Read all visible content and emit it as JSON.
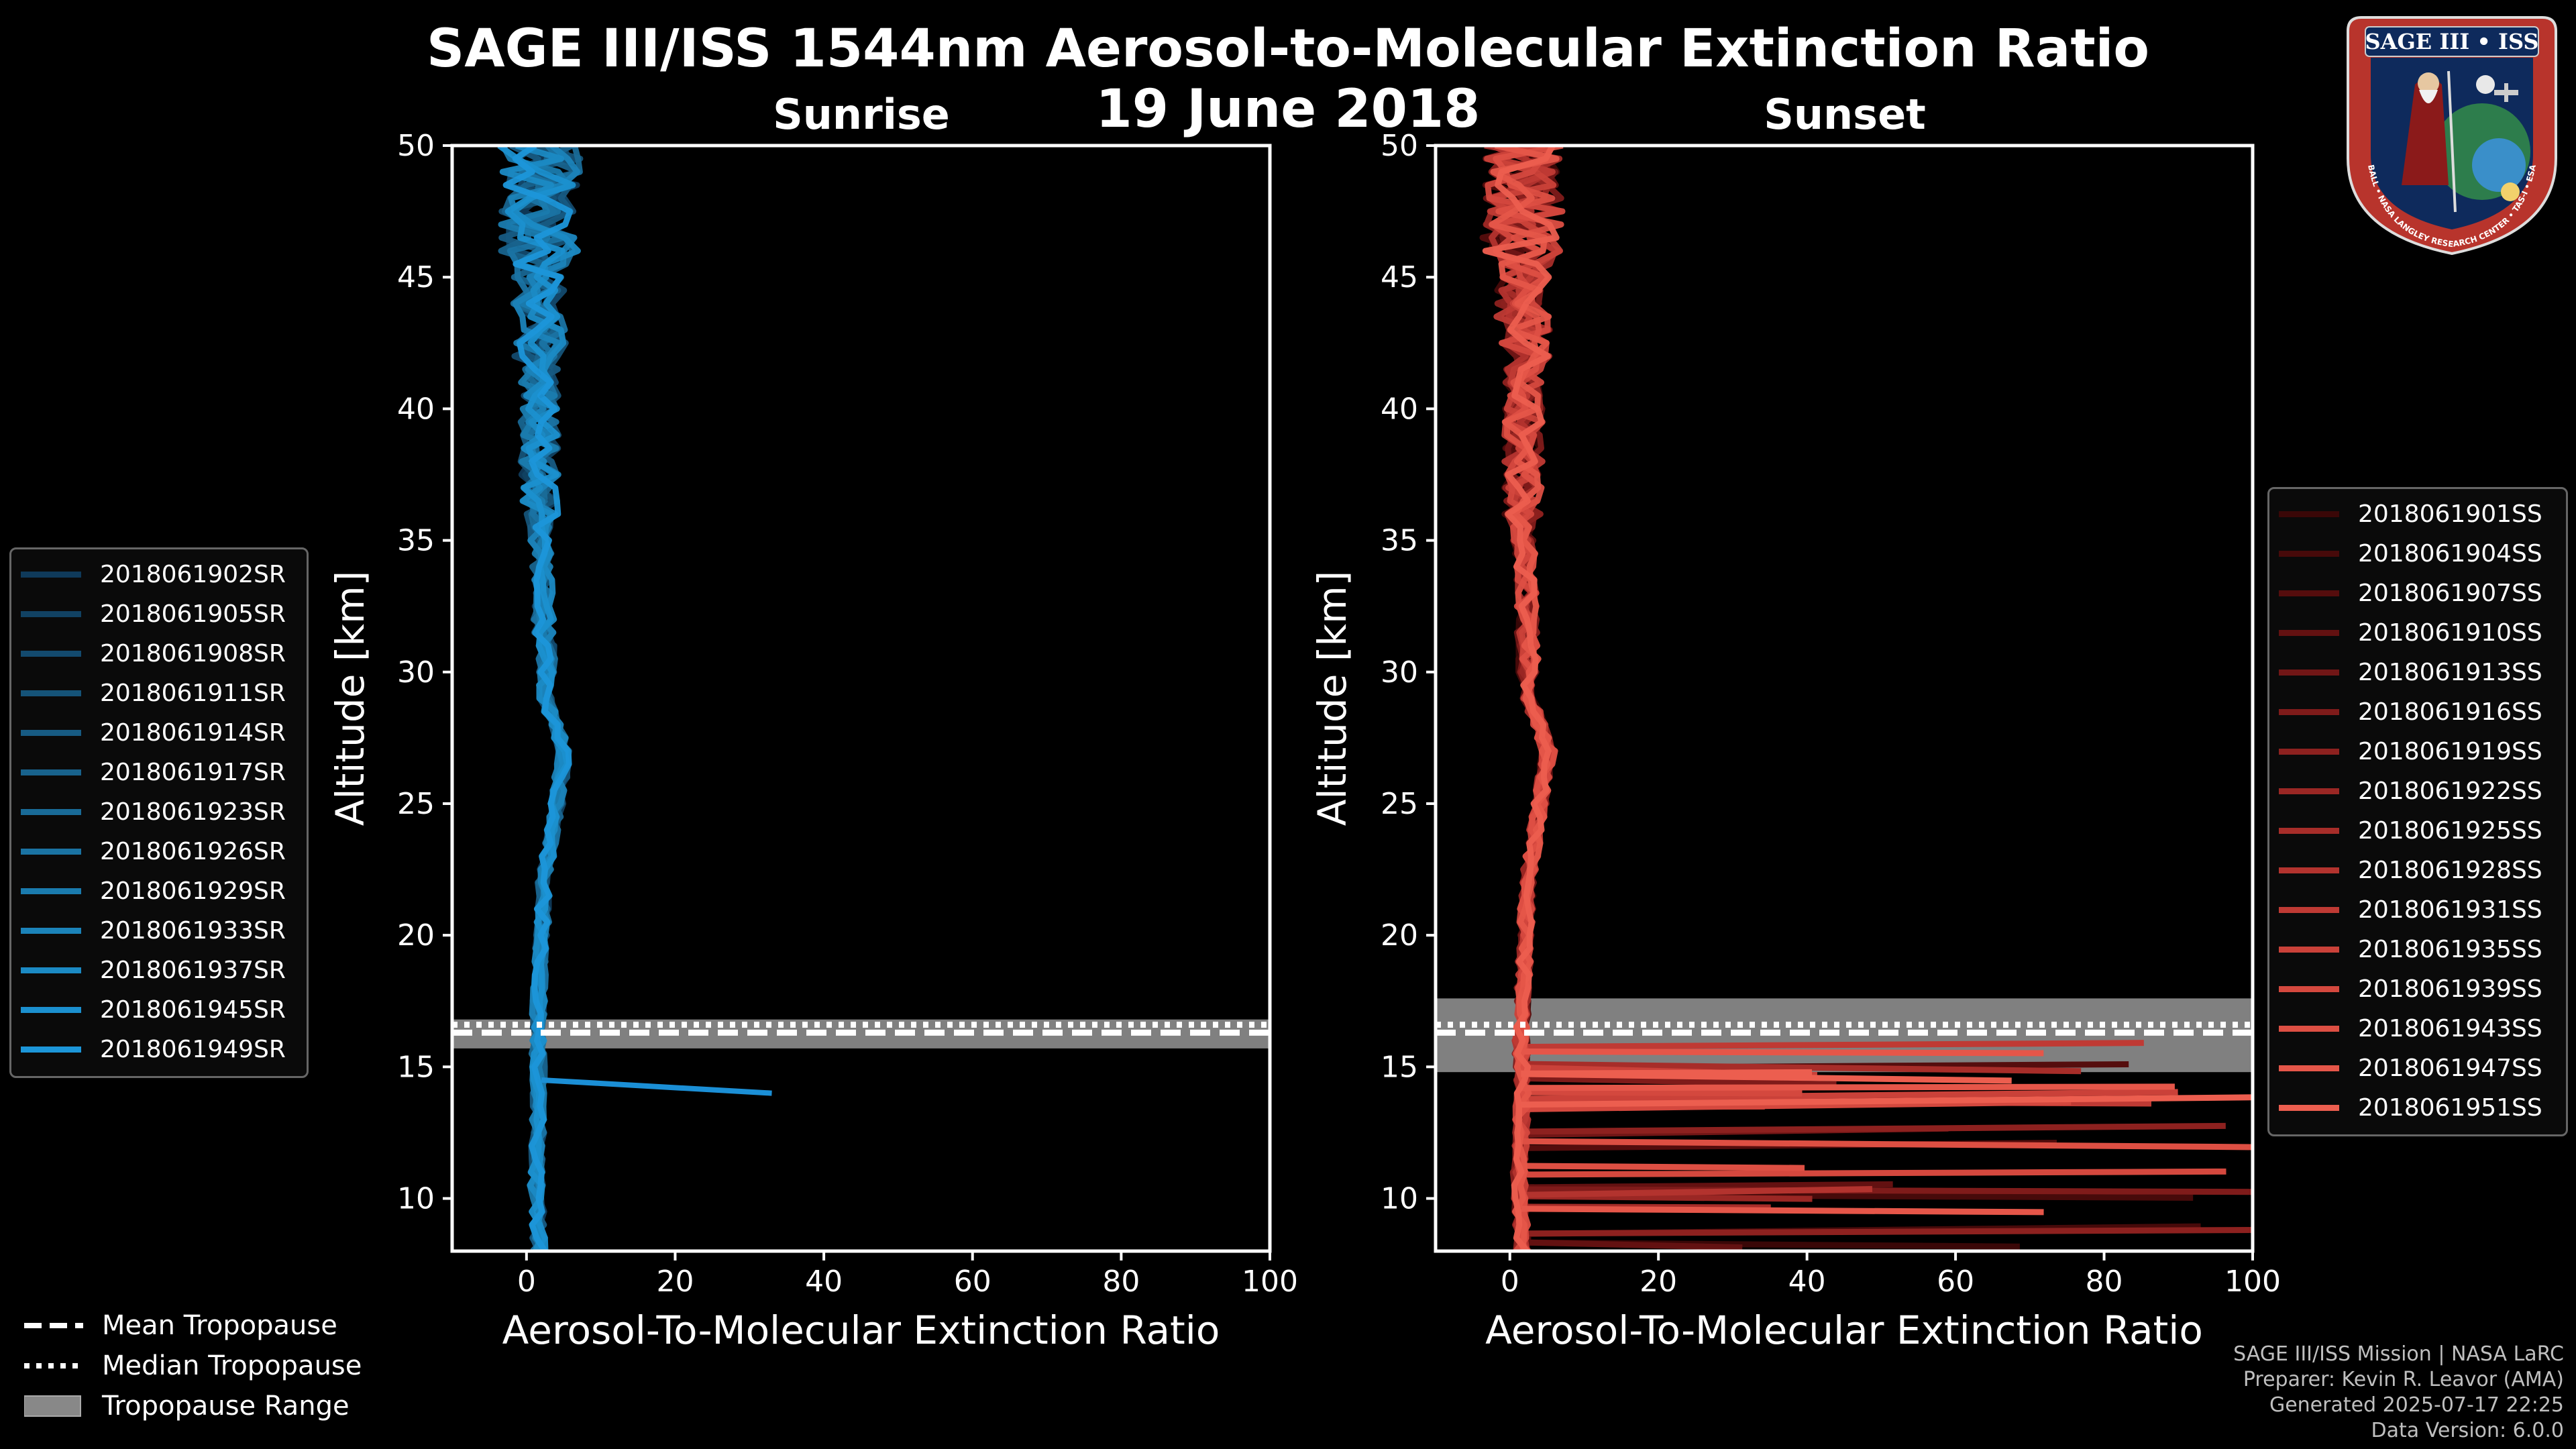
{
  "title_line1": "SAGE III/ISS 1544nm Aerosol-to-Molecular Extinction Ratio",
  "title_line2": "19 June 2018",
  "colors": {
    "sunrise": "#1b8fd6",
    "sunset": "#e45a4a",
    "range": "#808080",
    "frame": "#ffffff"
  },
  "chart_data": [
    {
      "type": "line",
      "title": "Sunrise",
      "xlabel": "Aerosol-To-Molecular Extinction Ratio",
      "ylabel": "Altitude [km]",
      "xlim": [
        -10,
        100
      ],
      "ylim": [
        8,
        50
      ],
      "xticks": [
        "0",
        "20",
        "40",
        "60",
        "80",
        "100"
      ],
      "yticks": [
        "10",
        "15",
        "20",
        "25",
        "30",
        "35",
        "40",
        "45",
        "50"
      ],
      "tropopause": {
        "mean": 16.3,
        "median": 16.6,
        "range": [
          15.7,
          16.8
        ]
      },
      "outlier": {
        "x": [
          2,
          33
        ],
        "y": [
          14.5,
          14.0
        ]
      },
      "series": [
        {
          "name": "2018061902SR",
          "color": "#0f3a5a"
        },
        {
          "name": "2018061905SR",
          "color": "#114263"
        },
        {
          "name": "2018061908SR",
          "color": "#134a6e"
        },
        {
          "name": "2018061911SR",
          "color": "#155378"
        },
        {
          "name": "2018061914SR",
          "color": "#175b83"
        },
        {
          "name": "2018061917SR",
          "color": "#18638d"
        },
        {
          "name": "2018061923SR",
          "color": "#196b98"
        },
        {
          "name": "2018061926SR",
          "color": "#1a73a3"
        },
        {
          "name": "2018061929SR",
          "color": "#1a7bae"
        },
        {
          "name": "2018061933SR",
          "color": "#1b83b9"
        },
        {
          "name": "2018061937SR",
          "color": "#1b8ac4"
        },
        {
          "name": "2018061945SR",
          "color": "#1b90cf"
        },
        {
          "name": "2018061949SR",
          "color": "#1c96d9"
        }
      ]
    },
    {
      "type": "line",
      "title": "Sunset",
      "xlabel": "Aerosol-To-Molecular Extinction Ratio",
      "ylabel": "Altitude [km]",
      "xlim": [
        -10,
        100
      ],
      "ylim": [
        8,
        50
      ],
      "xticks": [
        "0",
        "20",
        "40",
        "60",
        "80",
        "100"
      ],
      "yticks": [
        "10",
        "15",
        "20",
        "25",
        "30",
        "35",
        "40",
        "45",
        "50"
      ],
      "tropopause": {
        "mean": 16.3,
        "median": 16.6,
        "range": [
          14.8,
          17.6
        ]
      },
      "series": [
        {
          "name": "2018061901SS",
          "color": "#3a0707"
        },
        {
          "name": "2018061904SS",
          "color": "#470a0a"
        },
        {
          "name": "2018061907SS",
          "color": "#550d0d"
        },
        {
          "name": "2018061910SS",
          "color": "#631111"
        },
        {
          "name": "2018061913SS",
          "color": "#711616"
        },
        {
          "name": "2018061916SS",
          "color": "#7f1b1a"
        },
        {
          "name": "2018061919SS",
          "color": "#8d211f"
        },
        {
          "name": "2018061922SS",
          "color": "#9a2724"
        },
        {
          "name": "2018061925SS",
          "color": "#a72d29"
        },
        {
          "name": "2018061928SS",
          "color": "#b3332e"
        },
        {
          "name": "2018061931SS",
          "color": "#bf3a34"
        },
        {
          "name": "2018061935SS",
          "color": "#ca4139"
        },
        {
          "name": "2018061939SS",
          "color": "#d4483e"
        },
        {
          "name": "2018061943SS",
          "color": "#dd4f43"
        },
        {
          "name": "2018061947SS",
          "color": "#e55649"
        },
        {
          "name": "2018061951SS",
          "color": "#ec5e4f"
        }
      ]
    }
  ],
  "bottom_legend": {
    "mean": "Mean Tropopause",
    "median": "Median Tropopause",
    "range": "Tropopause Range"
  },
  "credits": {
    "line1": "SAGE III/ISS Mission | NASA LaRC",
    "line2": "Preparer: Kevin R. Leavor (AMA)",
    "line3": "Generated 2025-07-17 22:25",
    "line4": "Data Version: 6.0.0"
  },
  "logo": {
    "title": "SAGE III • ISS",
    "ring_text": "BALL • NASA LANGLEY RESEARCH CENTER • TAS-I • ESA"
  }
}
